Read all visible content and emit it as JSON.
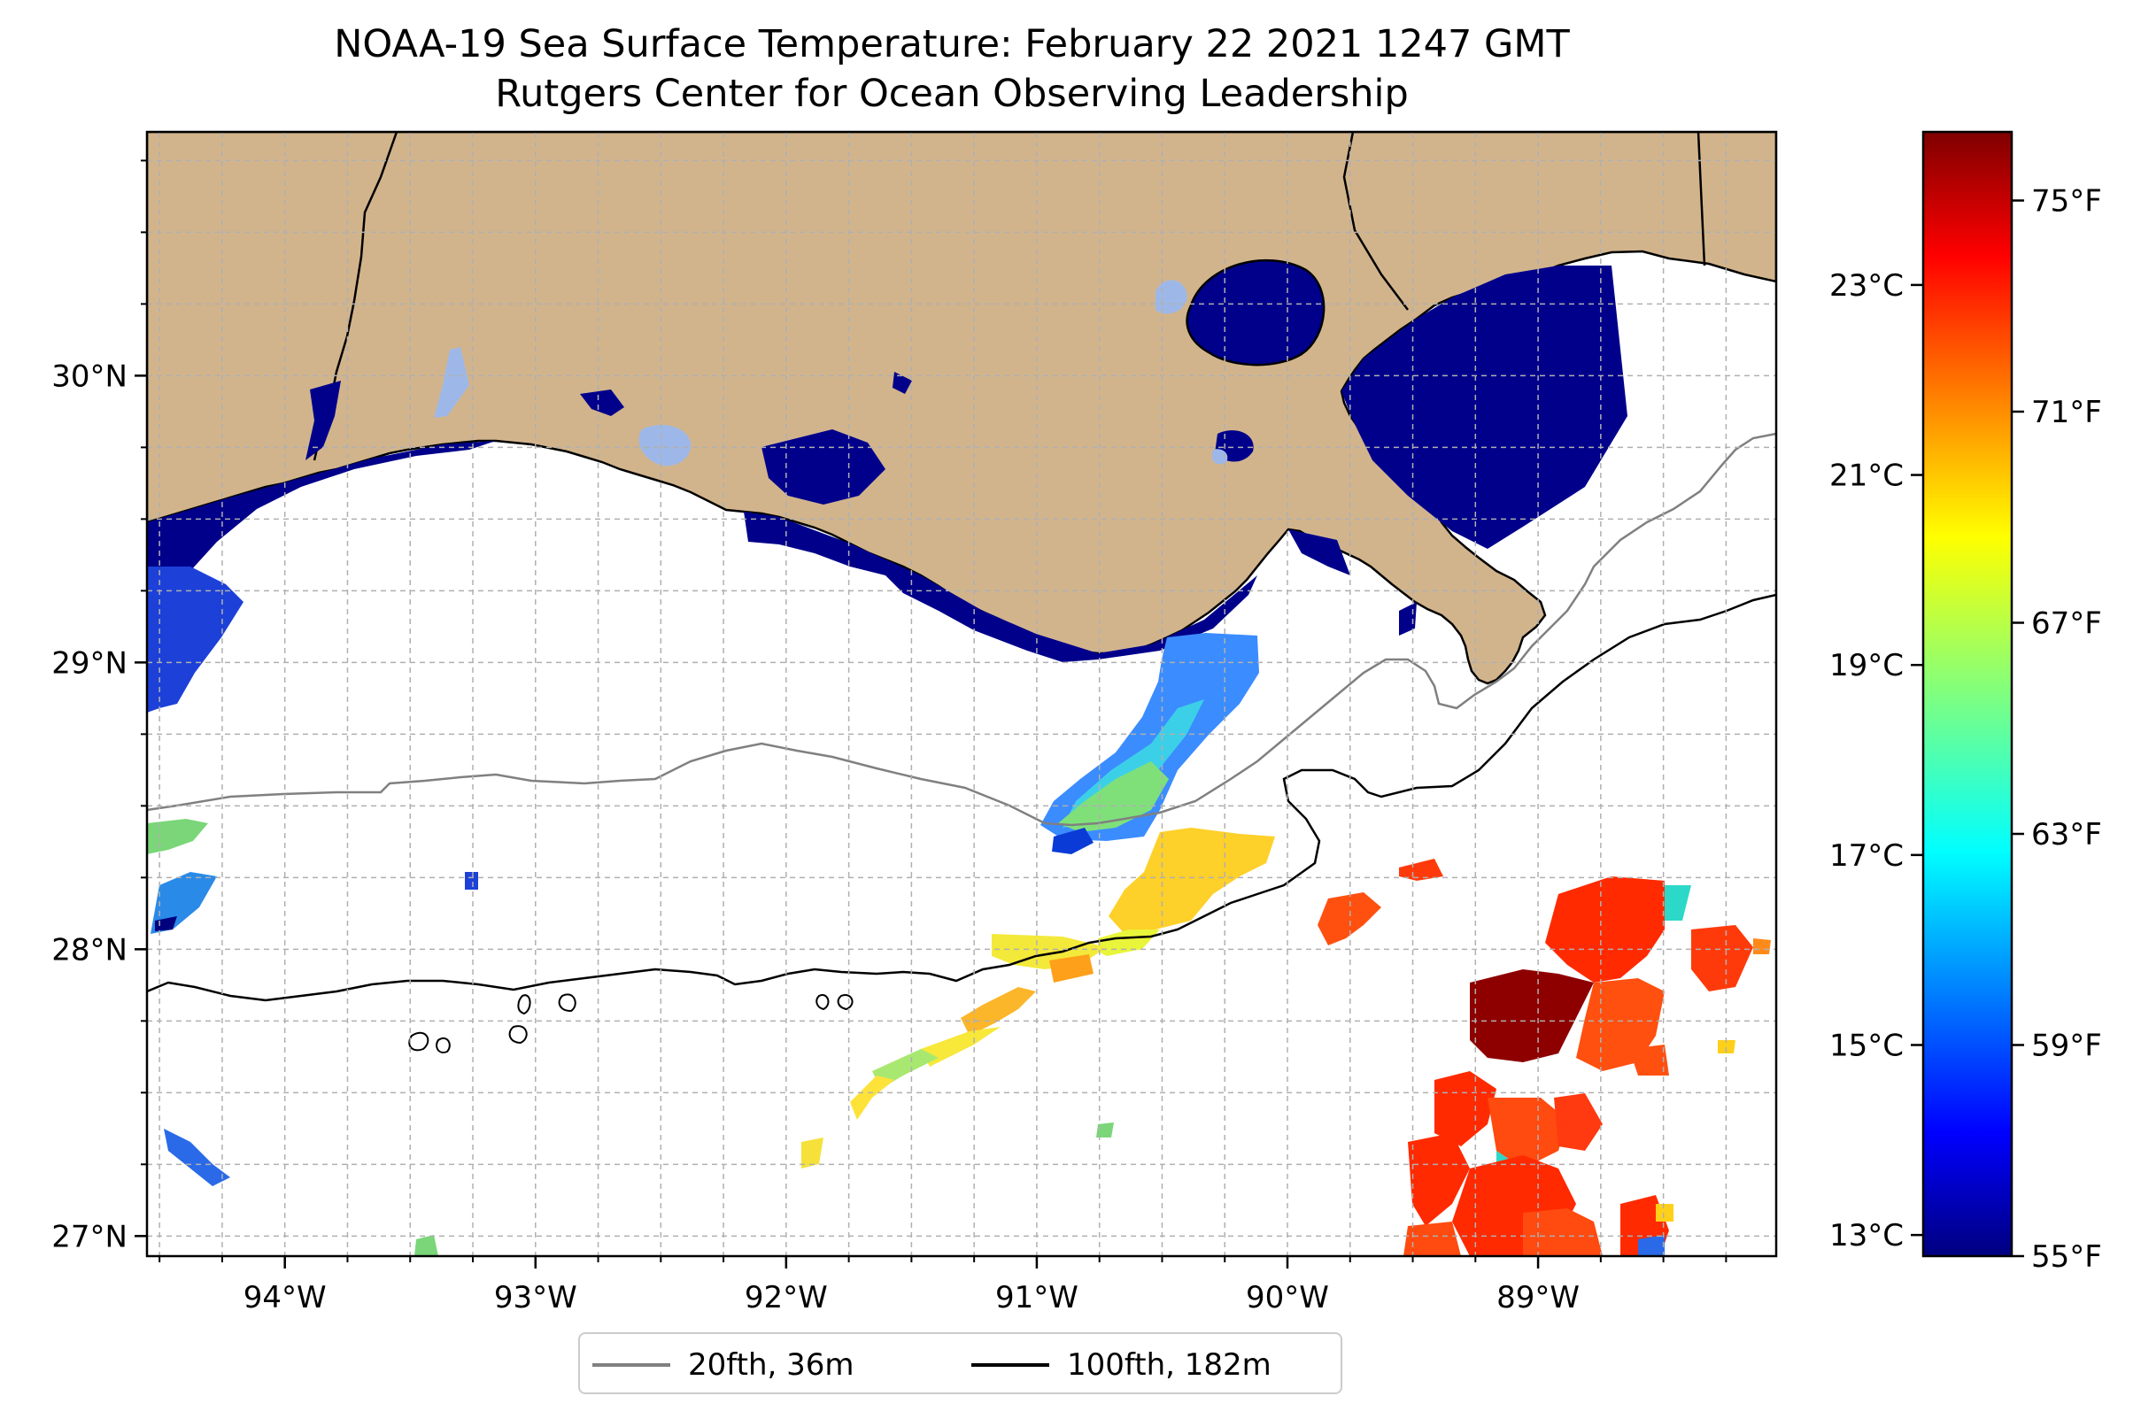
{
  "title": {
    "line1": "NOAA-19 Sea Surface Temperature: February 22 2021 1247 GMT",
    "line2": "Rutgers Center for Ocean Observing Leadership"
  },
  "map": {
    "lon_range": [
      -94.55,
      -88.05
    ],
    "lat_range": [
      26.93,
      30.85
    ],
    "lon_ticks": [
      {
        "value": -94,
        "label": "94°W"
      },
      {
        "value": -93,
        "label": "93°W"
      },
      {
        "value": -92,
        "label": "92°W"
      },
      {
        "value": -91,
        "label": "91°W"
      },
      {
        "value": -90,
        "label": "90°W"
      },
      {
        "value": -89,
        "label": "89°W"
      }
    ],
    "lat_ticks": [
      {
        "value": 30,
        "label": "30°N"
      },
      {
        "value": 29,
        "label": "29°N"
      },
      {
        "value": 28,
        "label": "28°N"
      },
      {
        "value": 27,
        "label": "27°N"
      }
    ],
    "grid": true,
    "colors": {
      "land": "#d2b48c",
      "ocean_nodata": "#ffffff",
      "isobath_20": "#808080",
      "isobath_100": "#000000",
      "coastline": "#000000"
    }
  },
  "legend": {
    "placement": "bottom-center",
    "items": [
      {
        "label": "20fth, 36m",
        "color": "#808080"
      },
      {
        "label": "100fth, 182m",
        "color": "#000000"
      }
    ]
  },
  "colorbar": {
    "colormap": "jet",
    "range_f": [
      55,
      76.3
    ],
    "celsius_ticks": [
      {
        "value": 23,
        "label": "23°C"
      },
      {
        "value": 21,
        "label": "21°C"
      },
      {
        "value": 19,
        "label": "19°C"
      },
      {
        "value": 17,
        "label": "17°C"
      },
      {
        "value": 15,
        "label": "15°C"
      },
      {
        "value": 13,
        "label": "13°C"
      }
    ],
    "fahrenheit_ticks": [
      {
        "value": 75,
        "label": "75°F"
      },
      {
        "value": 71,
        "label": "71°F"
      },
      {
        "value": 67,
        "label": "67°F"
      },
      {
        "value": 63,
        "label": "63°F"
      },
      {
        "value": 59,
        "label": "59°F"
      },
      {
        "value": 55,
        "label": "55°F"
      }
    ]
  }
}
